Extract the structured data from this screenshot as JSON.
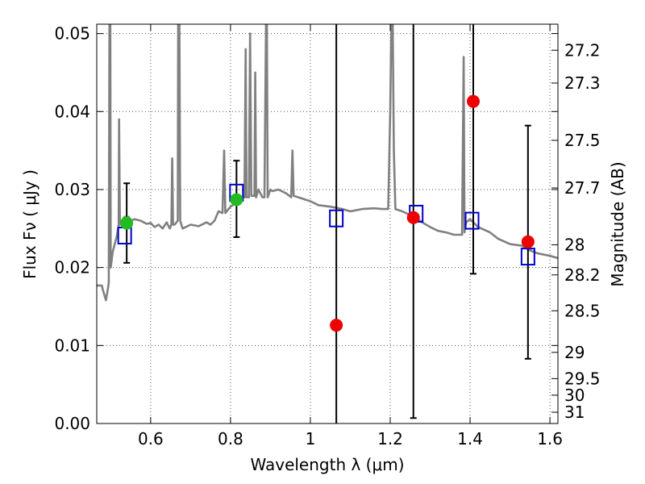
{
  "chart_data": {
    "type": "scatter",
    "xlabel": "Wavelength  λ (μm)",
    "ylabel": "Flux  Fν  ( μJy )",
    "y2label": "Magnitude (AB)",
    "xlim": [
      0.465,
      1.62
    ],
    "ylim": [
      0.0,
      0.0512
    ],
    "grid": true,
    "x_ticks": [
      0.6,
      0.8,
      1.0,
      1.2,
      1.4,
      1.6
    ],
    "x_tick_labels": [
      "0.6",
      "0.8",
      "1",
      "1.2",
      "1.4",
      "1.6"
    ],
    "y_ticks": [
      0.0,
      0.01,
      0.02,
      0.03,
      0.04,
      0.05
    ],
    "y_tick_labels": [
      "0.00",
      "0.01",
      "0.02",
      "0.03",
      "0.04",
      "0.05"
    ],
    "magnitude_ticks": [
      "27.2",
      "27.3",
      "27.5",
      "27.7",
      "28",
      "28.2",
      "28.5",
      "29",
      "29.5",
      "30",
      "31"
    ],
    "colors": {
      "spectrum": "#808080",
      "model": "#0000cc",
      "detection": "#22bb22",
      "nondetection": "#ee0000",
      "errorbar": "#000000",
      "grid": "#555555"
    },
    "series": [
      {
        "kind": "spectrum",
        "points": [
          [
            0.465,
            0.0177
          ],
          [
            0.478,
            0.0177
          ],
          [
            0.48,
            0.0172
          ],
          [
            0.488,
            0.0158
          ],
          [
            0.492,
            0.017
          ],
          [
            0.495,
            0.018
          ],
          [
            0.497,
            0.052
          ],
          [
            0.499,
            0.052
          ],
          [
            0.5,
            0.02
          ],
          [
            0.505,
            0.022
          ],
          [
            0.51,
            0.023
          ],
          [
            0.515,
            0.024
          ],
          [
            0.52,
            0.0255
          ],
          [
            0.521,
            0.039
          ],
          [
            0.523,
            0.0255
          ],
          [
            0.53,
            0.0262
          ],
          [
            0.535,
            0.0265
          ],
          [
            0.54,
            0.026
          ],
          [
            0.545,
            0.0265
          ],
          [
            0.55,
            0.026
          ],
          [
            0.56,
            0.0262
          ],
          [
            0.575,
            0.026
          ],
          [
            0.59,
            0.0256
          ],
          [
            0.6,
            0.0257
          ],
          [
            0.61,
            0.0252
          ],
          [
            0.62,
            0.0255
          ],
          [
            0.63,
            0.025
          ],
          [
            0.64,
            0.0258
          ],
          [
            0.648,
            0.025
          ],
          [
            0.652,
            0.0255
          ],
          [
            0.654,
            0.034
          ],
          [
            0.656,
            0.0255
          ],
          [
            0.66,
            0.0255
          ],
          [
            0.668,
            0.026
          ],
          [
            0.669,
            0.052
          ],
          [
            0.672,
            0.052
          ],
          [
            0.674,
            0.026
          ],
          [
            0.68,
            0.025
          ],
          [
            0.7,
            0.0255
          ],
          [
            0.72,
            0.0253
          ],
          [
            0.74,
            0.0258
          ],
          [
            0.75,
            0.0255
          ],
          [
            0.76,
            0.026
          ],
          [
            0.77,
            0.0272
          ],
          [
            0.78,
            0.027
          ],
          [
            0.784,
            0.035
          ],
          [
            0.787,
            0.027
          ],
          [
            0.8,
            0.0278
          ],
          [
            0.82,
            0.0285
          ],
          [
            0.83,
            0.029
          ],
          [
            0.835,
            0.029
          ],
          [
            0.838,
            0.048
          ],
          [
            0.84,
            0.029
          ],
          [
            0.846,
            0.029
          ],
          [
            0.849,
            0.05
          ],
          [
            0.852,
            0.0292
          ],
          [
            0.86,
            0.0292
          ],
          [
            0.862,
            0.045
          ],
          [
            0.864,
            0.029
          ],
          [
            0.87,
            0.03
          ],
          [
            0.88,
            0.029
          ],
          [
            0.885,
            0.029
          ],
          [
            0.889,
            0.052
          ],
          [
            0.891,
            0.052
          ],
          [
            0.893,
            0.029
          ],
          [
            0.9,
            0.03
          ],
          [
            0.905,
            0.0298
          ],
          [
            0.92,
            0.03
          ],
          [
            0.94,
            0.0295
          ],
          [
            0.952,
            0.029
          ],
          [
            0.955,
            0.035
          ],
          [
            0.958,
            0.0292
          ],
          [
            0.97,
            0.029
          ],
          [
            1.0,
            0.0285
          ],
          [
            1.02,
            0.028
          ],
          [
            1.05,
            0.0278
          ],
          [
            1.08,
            0.0275
          ],
          [
            1.1,
            0.0272
          ],
          [
            1.13,
            0.0275
          ],
          [
            1.16,
            0.0276
          ],
          [
            1.18,
            0.0275
          ],
          [
            1.195,
            0.0275
          ],
          [
            1.2,
            0.04
          ],
          [
            1.203,
            0.052
          ],
          [
            1.206,
            0.052
          ],
          [
            1.209,
            0.035
          ],
          [
            1.213,
            0.0275
          ],
          [
            1.23,
            0.0272
          ],
          [
            1.26,
            0.0265
          ],
          [
            1.28,
            0.0258
          ],
          [
            1.3,
            0.0252
          ],
          [
            1.32,
            0.0247
          ],
          [
            1.34,
            0.0245
          ],
          [
            1.36,
            0.0242
          ],
          [
            1.38,
            0.0242
          ],
          [
            1.384,
            0.047
          ],
          [
            1.386,
            0.0245
          ],
          [
            1.39,
            0.0258
          ],
          [
            1.4,
            0.0262
          ],
          [
            1.42,
            0.0252
          ],
          [
            1.45,
            0.0245
          ],
          [
            1.47,
            0.0237
          ],
          [
            1.5,
            0.023
          ],
          [
            1.53,
            0.0228
          ],
          [
            1.55,
            0.0222
          ],
          [
            1.57,
            0.0218
          ],
          [
            1.6,
            0.0215
          ],
          [
            1.62,
            0.0212
          ]
        ]
      },
      {
        "kind": "model",
        "points": [
          [
            0.535,
            0.0241
          ],
          [
            0.815,
            0.0296
          ],
          [
            1.065,
            0.0263
          ],
          [
            1.265,
            0.0269
          ],
          [
            1.405,
            0.026
          ],
          [
            1.545,
            0.0214
          ]
        ]
      },
      {
        "kind": "detection",
        "points": [
          [
            0.54,
            0.0257
          ],
          [
            0.815,
            0.0287
          ]
        ],
        "errors": [
          [
            0.0206,
            0.0308
          ],
          [
            0.0239,
            0.0337
          ]
        ]
      },
      {
        "kind": "nondetection",
        "points": [
          [
            1.065,
            0.0126
          ],
          [
            1.258,
            0.0264
          ],
          [
            1.408,
            0.0413
          ],
          [
            1.545,
            0.0233
          ]
        ],
        "errors": [
          [
            0.0,
            0.0512
          ],
          [
            0.0007,
            0.0512
          ],
          [
            0.0192,
            0.0512
          ],
          [
            0.0083,
            0.0382
          ]
        ]
      }
    ]
  }
}
